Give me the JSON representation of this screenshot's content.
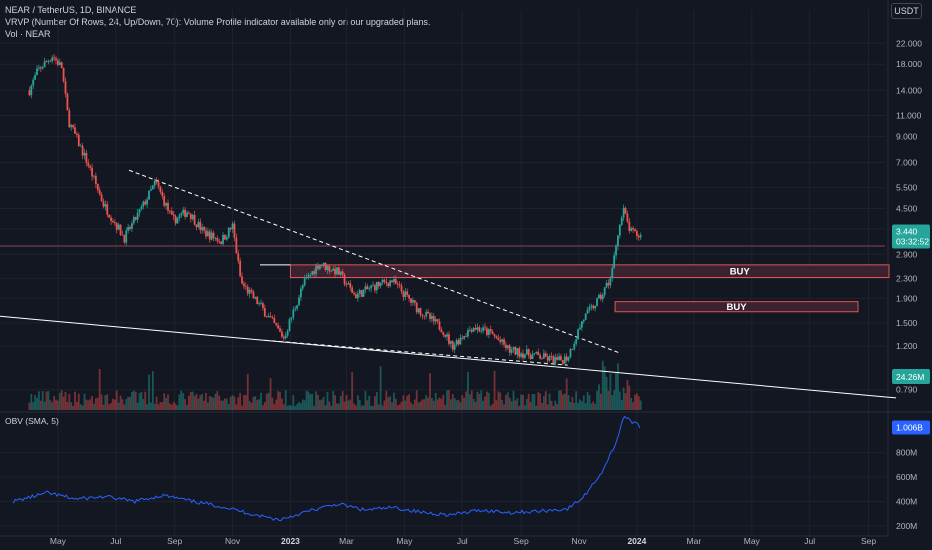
{
  "header": {
    "symbol_line": "NEAR / TetherUS, 1D, BINANCE",
    "vrvp_line": "VRVP (Number Of Rows, 24, Up/Down, 70): Volume Profile indicator available only on our upgraded plans.",
    "vol_line": "Vol · NEAR",
    "currency": "USDT"
  },
  "chart_data": [
    {
      "type": "line",
      "title": "NEAR / TetherUS, 1D, BINANCE",
      "y_scale": "log",
      "ylim": [
        0.65,
        25
      ],
      "y_ticks": [
        "22.000",
        "18.000",
        "14.000",
        "11.000",
        "9.000",
        "7.000",
        "5.500",
        "4.500",
        "3.700",
        "2.900",
        "2.300",
        "1.900",
        "1.500",
        "1.200",
        "0.790"
      ],
      "x_ticks": [
        "May",
        "Jul",
        "Sep",
        "Nov",
        "2023",
        "Mar",
        "May",
        "Jul",
        "Sep",
        "Nov",
        "2024",
        "Mar",
        "May",
        "Jul",
        "Sep"
      ],
      "price_series": [
        {
          "date": "2022-04-01",
          "close": 14.0
        },
        {
          "date": "2022-04-10",
          "close": 17.0
        },
        {
          "date": "2022-04-25",
          "close": 19.5
        },
        {
          "date": "2022-05-05",
          "close": 17.5
        },
        {
          "date": "2022-05-12",
          "close": 10.5
        },
        {
          "date": "2022-06-01",
          "close": 7.0
        },
        {
          "date": "2022-06-18",
          "close": 4.7
        },
        {
          "date": "2022-07-10",
          "close": 3.4
        },
        {
          "date": "2022-07-28",
          "close": 4.5
        },
        {
          "date": "2022-08-12",
          "close": 5.8
        },
        {
          "date": "2022-08-30",
          "close": 4.0
        },
        {
          "date": "2022-09-15",
          "close": 4.4
        },
        {
          "date": "2022-10-01",
          "close": 3.6
        },
        {
          "date": "2022-10-20",
          "close": 3.3
        },
        {
          "date": "2022-11-01",
          "close": 3.8
        },
        {
          "date": "2022-11-10",
          "close": 2.2
        },
        {
          "date": "2022-12-01",
          "close": 1.75
        },
        {
          "date": "2022-12-25",
          "close": 1.3
        },
        {
          "date": "2023-01-15",
          "close": 2.2
        },
        {
          "date": "2023-01-31",
          "close": 2.65
        },
        {
          "date": "2023-02-20",
          "close": 2.45
        },
        {
          "date": "2023-03-10",
          "close": 1.95
        },
        {
          "date": "2023-04-01",
          "close": 2.15
        },
        {
          "date": "2023-04-18",
          "close": 2.25
        },
        {
          "date": "2023-05-15",
          "close": 1.72
        },
        {
          "date": "2023-06-10",
          "close": 1.42
        },
        {
          "date": "2023-06-20",
          "close": 1.2
        },
        {
          "date": "2023-07-12",
          "close": 1.45
        },
        {
          "date": "2023-08-01",
          "close": 1.35
        },
        {
          "date": "2023-08-20",
          "close": 1.15
        },
        {
          "date": "2023-09-15",
          "close": 1.1
        },
        {
          "date": "2023-10-10",
          "close": 1.04
        },
        {
          "date": "2023-10-20",
          "close": 1.08
        },
        {
          "date": "2023-11-05",
          "close": 1.55
        },
        {
          "date": "2023-11-25",
          "close": 1.95
        },
        {
          "date": "2023-12-05",
          "close": 2.35
        },
        {
          "date": "2023-12-12",
          "close": 3.6
        },
        {
          "date": "2023-12-18",
          "close": 4.4
        },
        {
          "date": "2023-12-25",
          "close": 3.6
        },
        {
          "date": "2024-01-05",
          "close": 3.44
        }
      ],
      "last_price_label": "3.440",
      "countdown_label": "03:32:52",
      "volume_label": "24.26M",
      "annotations": [
        "BUY",
        "BUY"
      ],
      "buy_zones": [
        {
          "label": "BUY",
          "from": "2023-01-01",
          "to": "2024-09-30",
          "low": 2.32,
          "high": 2.62
        },
        {
          "label": "BUY",
          "from": "2023-12-09",
          "to": "2024-09-30",
          "low": 1.67,
          "high": 1.84
        }
      ],
      "trendlines": [
        {
          "style": "dashed",
          "from": {
            "date": "2022-07-15",
            "price": 6.5
          },
          "to": {
            "date": "2023-12-15",
            "price": 1.12
          }
        },
        {
          "style": "dashed",
          "from": {
            "date": "2022-12-05",
            "price": 1.27
          },
          "to": {
            "date": "2023-10-20",
            "price": 1.0
          }
        },
        {
          "style": "solid",
          "from": {
            "date": "2022-03-01",
            "price": 1.6
          },
          "to": {
            "date": "2024-09-30",
            "price": 0.73
          }
        }
      ],
      "horizontal_levels": [
        3.14
      ]
    },
    {
      "type": "line",
      "title": "OBV (SMA, 5)",
      "ylim": [
        150,
        1100
      ],
      "y_ticks": [
        "800M",
        "600M",
        "400M",
        "200M"
      ],
      "last_value_label": "1.006B",
      "series": [
        {
          "date": "2022-03-15",
          "obv": 400
        },
        {
          "date": "2022-04-20",
          "obv": 470
        },
        {
          "date": "2022-05-20",
          "obv": 420
        },
        {
          "date": "2022-06-20",
          "obv": 440
        },
        {
          "date": "2022-07-20",
          "obv": 400
        },
        {
          "date": "2022-08-20",
          "obv": 450
        },
        {
          "date": "2022-09-20",
          "obv": 400
        },
        {
          "date": "2022-10-20",
          "obv": 360
        },
        {
          "date": "2022-11-20",
          "obv": 300
        },
        {
          "date": "2022-12-20",
          "obv": 250
        },
        {
          "date": "2023-01-20",
          "obv": 320
        },
        {
          "date": "2023-02-20",
          "obv": 380
        },
        {
          "date": "2023-03-20",
          "obv": 330
        },
        {
          "date": "2023-04-20",
          "obv": 350
        },
        {
          "date": "2023-05-20",
          "obv": 310
        },
        {
          "date": "2023-06-20",
          "obv": 290
        },
        {
          "date": "2023-07-20",
          "obv": 330
        },
        {
          "date": "2023-08-20",
          "obv": 310
        },
        {
          "date": "2023-09-20",
          "obv": 320
        },
        {
          "date": "2023-10-20",
          "obv": 340
        },
        {
          "date": "2023-11-05",
          "obv": 430
        },
        {
          "date": "2023-11-25",
          "obv": 640
        },
        {
          "date": "2023-12-10",
          "obv": 880
        },
        {
          "date": "2023-12-18",
          "obv": 1100
        },
        {
          "date": "2024-01-05",
          "obv": 1006
        }
      ]
    }
  ],
  "colors": {
    "background": "#131722",
    "price_up": "#26a69a",
    "price_down": "#ef5350",
    "obv_line": "#2962ff",
    "zone_fill": "#3a2230",
    "zone_border": "#e05555",
    "trendline": "#ffffff",
    "level_line": "#8a4450"
  }
}
